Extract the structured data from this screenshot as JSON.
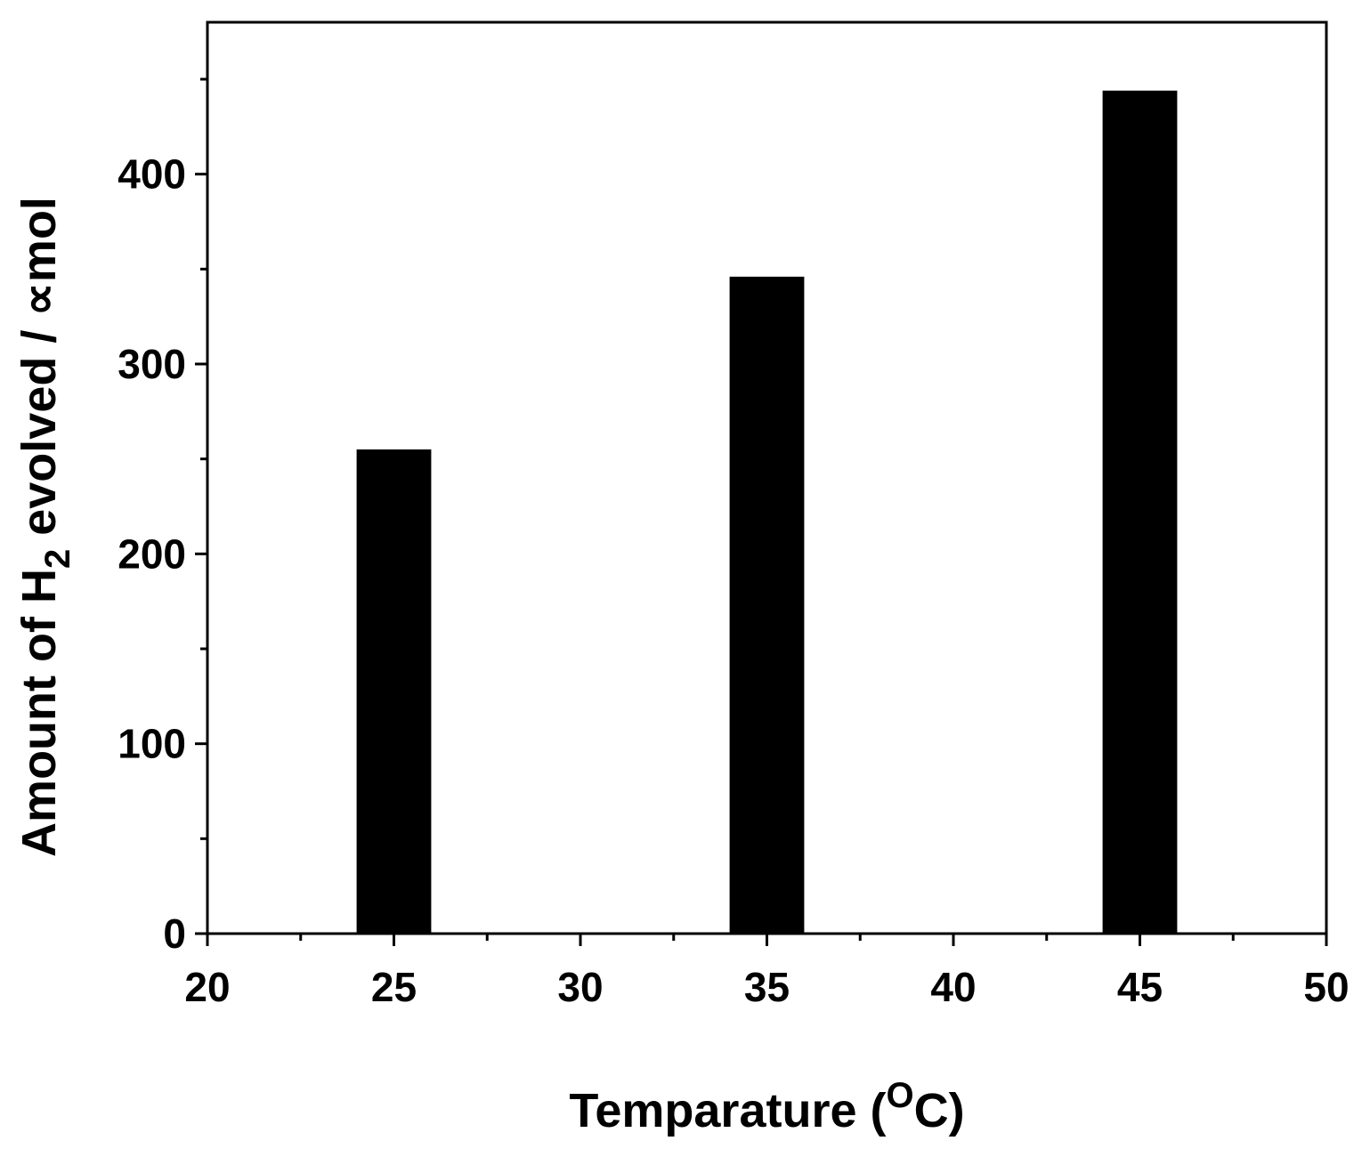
{
  "chart_data": {
    "type": "bar",
    "x": [
      25,
      35,
      45
    ],
    "values": [
      255,
      346,
      444
    ],
    "xlim": [
      20,
      50
    ],
    "ylim": [
      0,
      480
    ],
    "x_ticks": [
      20,
      25,
      30,
      35,
      40,
      45,
      50
    ],
    "y_ticks": [
      0,
      100,
      200,
      300,
      400
    ],
    "bar_width": 2,
    "bar_color": "#000000",
    "grid": false,
    "xlabel": {
      "main": "Temparature (",
      "sup": "O",
      "tail": "C)"
    },
    "ylabel": {
      "main": "Amount of H",
      "sub": "2",
      "tail": " evolved / ∝mol"
    }
  }
}
